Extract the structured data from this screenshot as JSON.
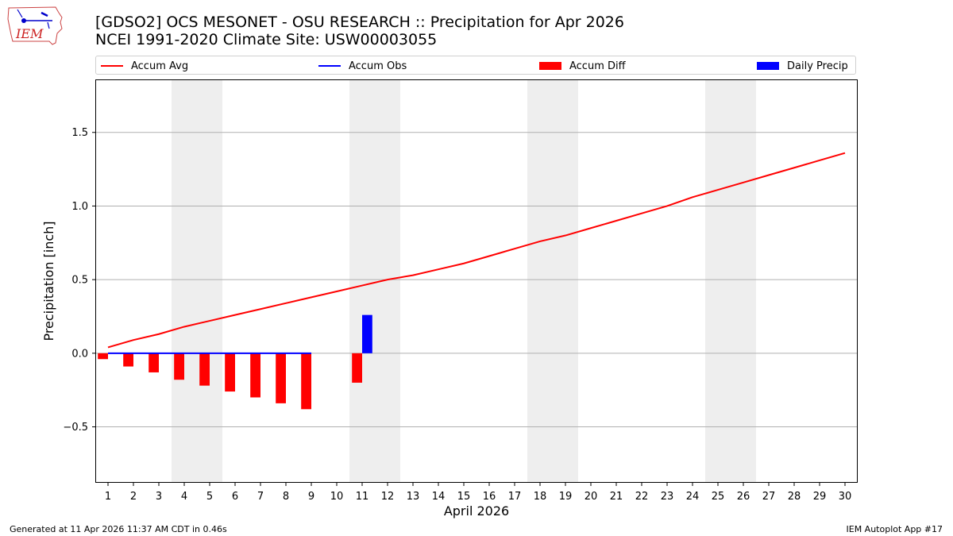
{
  "title": "[GDSO2] OCS MESONET - OSU RESEARCH :: Precipitation for Apr 2026",
  "subtitle": "NCEI 1991-2020 Climate Site: USW00003055",
  "logo_text": "IEM",
  "footer": {
    "generated": "Generated at 11 Apr 2026 11:37 AM CDT in 0.46s",
    "app": "IEM Autoplot App #17"
  },
  "colors": {
    "accum_avg": "#ff0000",
    "accum_obs": "#0000ff",
    "accum_diff": "#ff0000",
    "daily_precip": "#0000ff",
    "weekend_shade": "#eeeeee",
    "grid": "#b0b0b0"
  },
  "legend": [
    {
      "label": "Accum Avg",
      "kind": "line",
      "color": "#ff0000"
    },
    {
      "label": "Accum Obs",
      "kind": "line",
      "color": "#0000ff"
    },
    {
      "label": "Accum Diff",
      "kind": "bar",
      "color": "#ff0000"
    },
    {
      "label": "Daily Precip",
      "kind": "bar",
      "color": "#0000ff"
    }
  ],
  "chart_data": {
    "type": "bar",
    "xlabel": "April 2026",
    "ylabel": "Precipitation [inch]",
    "ylim": [
      -0.88,
      1.86
    ],
    "yticks": [
      -0.5,
      0.0,
      0.5,
      1.0,
      1.5
    ],
    "ytick_labels": [
      "−0.5",
      "0.0",
      "0.5",
      "1.0",
      "1.5"
    ],
    "xlim": [
      0.5,
      30.5
    ],
    "grid": true,
    "legend_position": "top",
    "days": [
      1,
      2,
      3,
      4,
      5,
      6,
      7,
      8,
      9,
      10,
      11,
      12,
      13,
      14,
      15,
      16,
      17,
      18,
      19,
      20,
      21,
      22,
      23,
      24,
      25,
      26,
      27,
      28,
      29,
      30
    ],
    "weekend_spans": [
      [
        3.5,
        5.5
      ],
      [
        10.5,
        12.5
      ],
      [
        17.5,
        19.5
      ],
      [
        24.5,
        26.5
      ]
    ],
    "series": [
      {
        "name": "Accum Avg",
        "type": "line",
        "x": [
          1,
          2,
          3,
          4,
          5,
          6,
          7,
          8,
          9,
          10,
          11,
          12,
          13,
          14,
          15,
          16,
          17,
          18,
          19,
          20,
          21,
          22,
          23,
          24,
          25,
          26,
          27,
          28,
          29,
          30
        ],
        "values": [
          0.04,
          0.09,
          0.13,
          0.18,
          0.22,
          0.26,
          0.3,
          0.34,
          0.38,
          0.42,
          0.46,
          0.5,
          0.53,
          0.57,
          0.61,
          0.66,
          0.71,
          0.76,
          0.8,
          0.85,
          0.9,
          0.95,
          1.0,
          1.06,
          1.11,
          1.16,
          1.21,
          1.26,
          1.31,
          1.36
        ]
      },
      {
        "name": "Accum Obs",
        "type": "line",
        "x": [
          1,
          2,
          3,
          4,
          5,
          6,
          7,
          8,
          9
        ],
        "values": [
          0,
          0,
          0,
          0,
          0,
          0,
          0,
          0,
          0
        ]
      },
      {
        "name": "Accum Diff",
        "type": "bar",
        "x": [
          1,
          2,
          3,
          4,
          5,
          6,
          7,
          8,
          9,
          11
        ],
        "values": [
          -0.04,
          -0.09,
          -0.13,
          -0.18,
          -0.22,
          -0.26,
          -0.3,
          -0.34,
          -0.38,
          -0.2
        ]
      },
      {
        "name": "Daily Precip",
        "type": "bar",
        "x": [
          11
        ],
        "values": [
          0.26
        ]
      }
    ]
  }
}
